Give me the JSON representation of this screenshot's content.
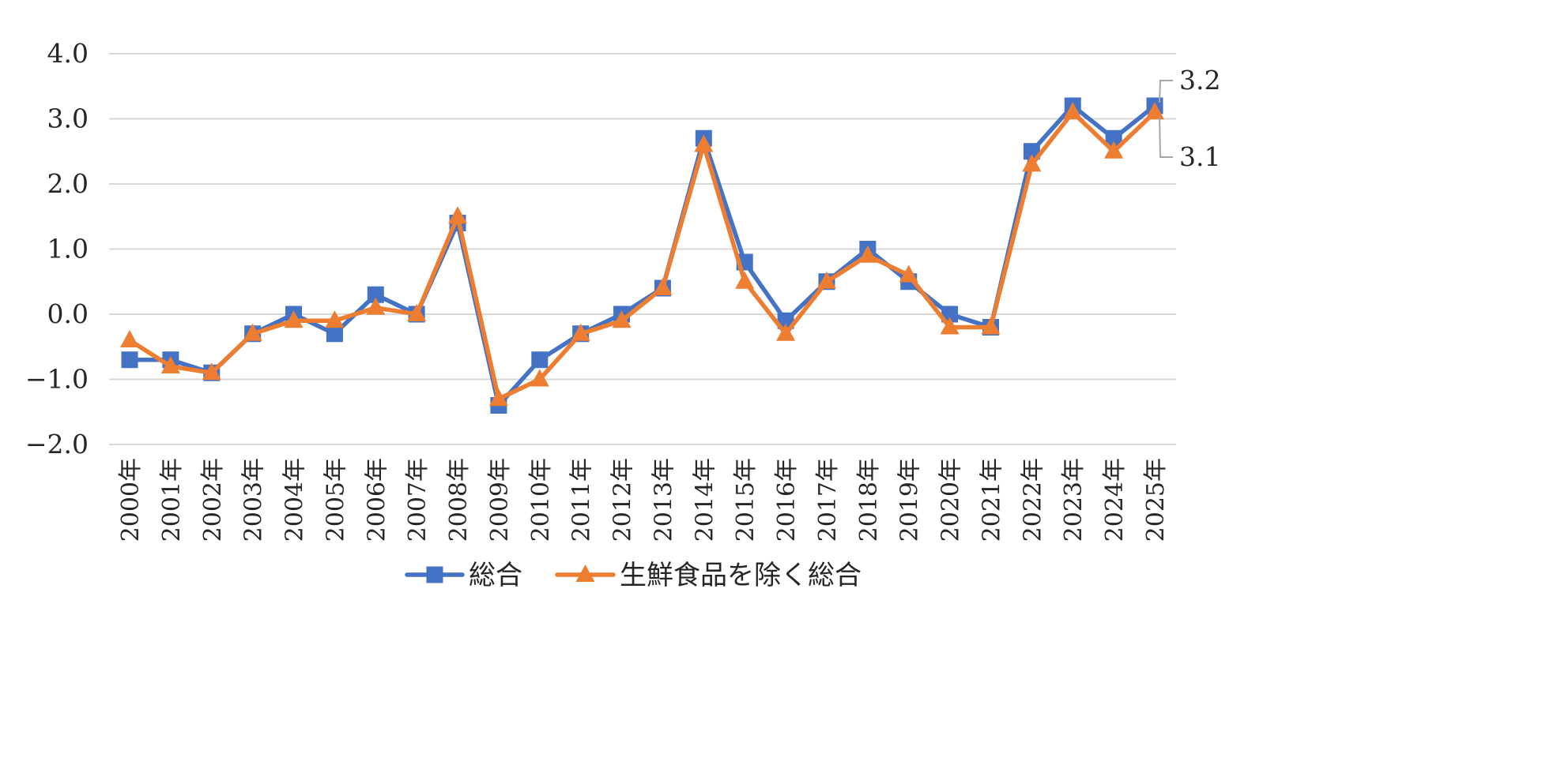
{
  "chart_data": {
    "type": "line",
    "title": "",
    "xlabel": "",
    "ylabel": "",
    "ylim": [
      -2.0,
      4.0
    ],
    "yticks": [
      "4.0",
      "3.0",
      "2.0",
      "1.0",
      "0.0",
      "−1.0",
      "−2.0"
    ],
    "grid": true,
    "legend_position": "bottom",
    "categories": [
      "2000年",
      "2001年",
      "2002年",
      "2003年",
      "2004年",
      "2005年",
      "2006年",
      "2007年",
      "2008年",
      "2009年",
      "2010年",
      "2011年",
      "2012年",
      "2013年",
      "2014年",
      "2015年",
      "2016年",
      "2017年",
      "2018年",
      "2019年",
      "2020年",
      "2021年",
      "2022年",
      "2023年",
      "2024年",
      "2025年"
    ],
    "series": [
      {
        "name": "総合",
        "color": "#4472C4",
        "marker": "square",
        "values": [
          -0.7,
          -0.7,
          -0.9,
          -0.3,
          0.0,
          -0.3,
          0.3,
          0.0,
          1.4,
          -1.4,
          -0.7,
          -0.3,
          0.0,
          0.4,
          2.7,
          0.8,
          -0.1,
          0.5,
          1.0,
          0.5,
          0.0,
          -0.2,
          2.5,
          3.2,
          2.7,
          3.2
        ]
      },
      {
        "name": "生鮮食品を除く総合",
        "color": "#ED7D31",
        "marker": "triangle",
        "values": [
          -0.4,
          -0.8,
          -0.9,
          -0.3,
          -0.1,
          -0.1,
          0.1,
          0.0,
          1.5,
          -1.3,
          -1.0,
          -0.3,
          -0.1,
          0.4,
          2.6,
          0.5,
          -0.3,
          0.5,
          0.9,
          0.6,
          -0.2,
          -0.2,
          2.3,
          3.1,
          2.5,
          3.1
        ]
      }
    ],
    "annotations": [
      {
        "text": "3.2",
        "series": 0,
        "point": 25
      },
      {
        "text": "3.1",
        "series": 1,
        "point": 25
      }
    ]
  }
}
